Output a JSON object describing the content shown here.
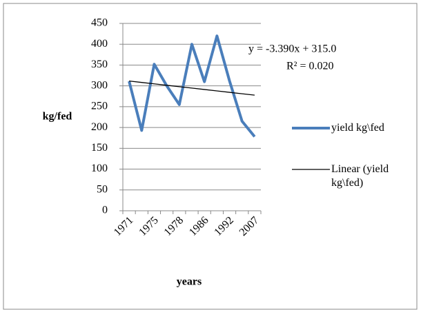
{
  "chart_data": {
    "type": "line",
    "y_label": "kg/fed",
    "x_label": "years",
    "categories": [
      "1971",
      null,
      "1975",
      null,
      "1978",
      null,
      "1986",
      null,
      "1992",
      null,
      "2007"
    ],
    "series": [
      {
        "name": "yield kg\\fed",
        "color": "#4a7ebb",
        "values": [
          311,
          193,
          352,
          300,
          255,
          400,
          310,
          420,
          312,
          215,
          178
        ]
      },
      {
        "name": "Linear (yield kg\\fed)",
        "color": "#000000",
        "values": [
          311.61,
          308.22,
          304.83,
          301.44,
          298.05,
          294.66,
          291.27,
          287.88,
          284.49,
          281.1,
          277.71
        ]
      }
    ],
    "annotations": [
      "y = -3.390x + 315.0",
      "R² = 0.020"
    ],
    "ylim": [
      0,
      450
    ],
    "yticks": [
      0,
      50,
      100,
      150,
      200,
      250,
      300,
      350,
      400,
      450
    ],
    "grid": true,
    "legend": "right"
  }
}
